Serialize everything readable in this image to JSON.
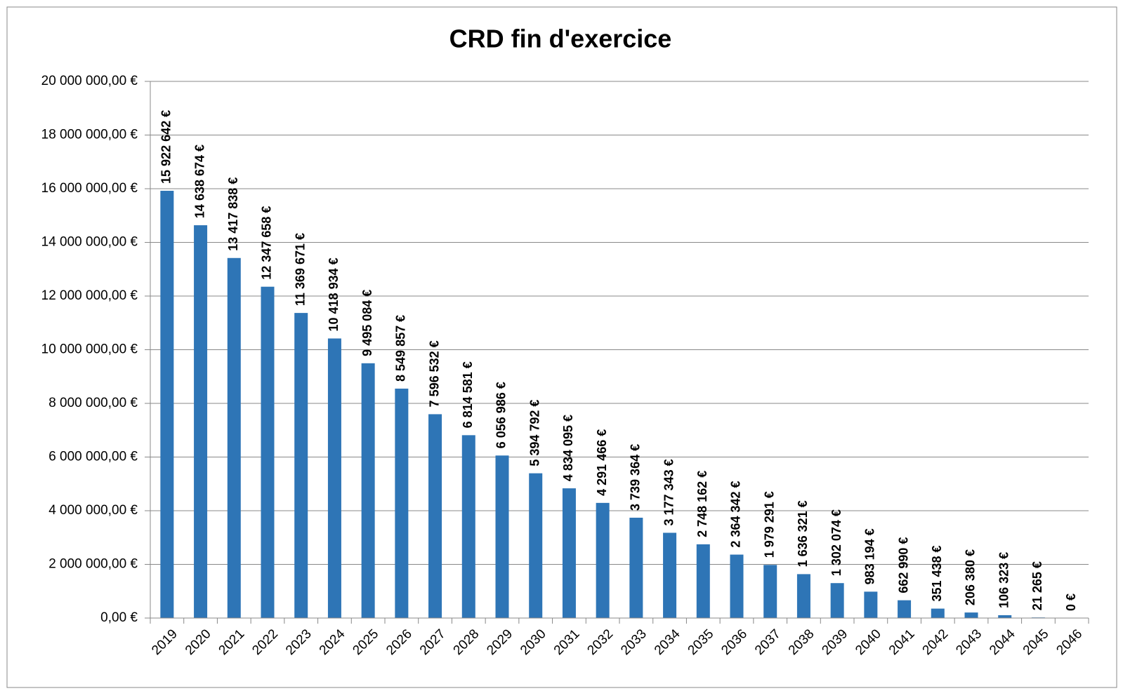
{
  "chart_data": {
    "type": "bar",
    "title": "CRD fin d'exercice",
    "categories": [
      "2019",
      "2020",
      "2021",
      "2022",
      "2023",
      "2024",
      "2025",
      "2026",
      "2027",
      "2028",
      "2029",
      "2030",
      "2031",
      "2032",
      "2033",
      "2034",
      "2035",
      "2036",
      "2037",
      "2038",
      "2039",
      "2040",
      "2041",
      "2042",
      "2043",
      "2044",
      "2045",
      "2046"
    ],
    "values": [
      15922642,
      14638674,
      13417838,
      12347658,
      11369671,
      10418934,
      9495084,
      8549857,
      7596532,
      6814581,
      6056986,
      5394792,
      4834095,
      4291466,
      3739364,
      3177343,
      2748162,
      2364342,
      1979291,
      1636321,
      1302074,
      983194,
      662990,
      351438,
      206380,
      106323,
      21265,
      0
    ],
    "value_labels": [
      "15 922 642 €",
      "14 638 674 €",
      "13 417 838 €",
      "12 347 658 €",
      "11 369 671 €",
      "10 418 934 €",
      "9 495 084 €",
      "8 549 857 €",
      "7 596 532 €",
      "6 814 581 €",
      "6 056 986 €",
      "5 394 792 €",
      "4 834 095 €",
      "4 291 466 €",
      "3 739 364 €",
      "3 177 343 €",
      "2 748 162 €",
      "2 364 342 €",
      "1 979 291 €",
      "1 636 321 €",
      "1 302 074 €",
      "983 194 €",
      "662 990 €",
      "351 438 €",
      "206 380 €",
      "106 323 €",
      "21 265 €",
      "0 €"
    ],
    "color": "#2e75b6",
    "ylim": [
      0,
      20000000
    ],
    "yticks": [
      {
        "value": 0,
        "label": "0,00 €"
      },
      {
        "value": 2000000,
        "label": "2 000 000,00 €"
      },
      {
        "value": 4000000,
        "label": "4 000 000,00 €"
      },
      {
        "value": 6000000,
        "label": "6 000 000,00 €"
      },
      {
        "value": 8000000,
        "label": "8 000 000,00 €"
      },
      {
        "value": 10000000,
        "label": "10 000 000,00 €"
      },
      {
        "value": 12000000,
        "label": "12 000 000,00 €"
      },
      {
        "value": 14000000,
        "label": "14 000 000,00 €"
      },
      {
        "value": 16000000,
        "label": "16 000 000,00 €"
      },
      {
        "value": 18000000,
        "label": "18 000 000,00 €"
      },
      {
        "value": 20000000,
        "label": "20 000 000,00 €"
      }
    ],
    "grid": true
  }
}
